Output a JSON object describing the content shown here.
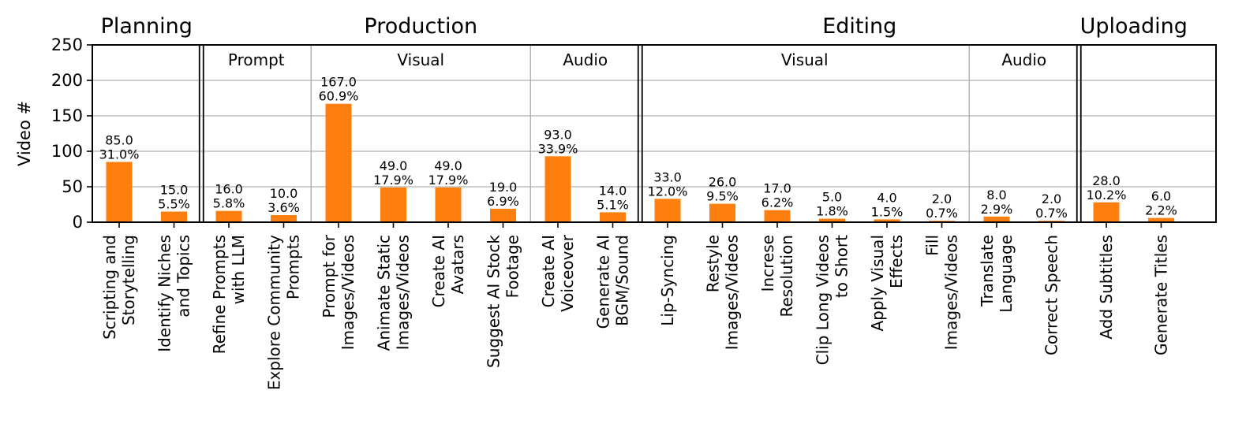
{
  "chart_data": {
    "type": "bar",
    "ylabel": "Video #",
    "ylim": [
      0,
      250
    ],
    "yticks": [
      0,
      50,
      100,
      150,
      200,
      250
    ],
    "grid": true,
    "bar_color": "#ff7f0e",
    "stages": [
      {
        "name": "Planning",
        "groups": [
          {
            "name": "",
            "bars": [
              {
                "label": [
                  "Scripting and",
                  "Storytelling"
                ],
                "value": 85,
                "value_text": "85.0",
                "percent_text": "31.0%"
              },
              {
                "label": [
                  "Identify Niches",
                  "and Topics"
                ],
                "value": 15,
                "value_text": "15.0",
                "percent_text": "5.5%"
              }
            ]
          }
        ]
      },
      {
        "name": "Production",
        "groups": [
          {
            "name": "Prompt",
            "bars": [
              {
                "label": [
                  "Refine Prompts",
                  "with LLM"
                ],
                "value": 16,
                "value_text": "16.0",
                "percent_text": "5.8%"
              },
              {
                "label": [
                  "Explore Community",
                  "Prompts"
                ],
                "value": 10,
                "value_text": "10.0",
                "percent_text": "3.6%"
              }
            ]
          },
          {
            "name": "Visual",
            "bars": [
              {
                "label": [
                  "Prompt for",
                  "Images/Videos"
                ],
                "value": 167,
                "value_text": "167.0",
                "percent_text": "60.9%"
              },
              {
                "label": [
                  "Animate Static",
                  "Images/Videos"
                ],
                "value": 49,
                "value_text": "49.0",
                "percent_text": "17.9%"
              },
              {
                "label": [
                  "Create AI",
                  "Avatars"
                ],
                "value": 49,
                "value_text": "49.0",
                "percent_text": "17.9%"
              },
              {
                "label": [
                  "Suggest AI Stock",
                  "Footage"
                ],
                "value": 19,
                "value_text": "19.0",
                "percent_text": "6.9%"
              }
            ]
          },
          {
            "name": "Audio",
            "bars": [
              {
                "label": [
                  "Create AI",
                  "Voiceover"
                ],
                "value": 93,
                "value_text": "93.0",
                "percent_text": "33.9%"
              },
              {
                "label": [
                  "Generate AI",
                  "BGM/Sound"
                ],
                "value": 14,
                "value_text": "14.0",
                "percent_text": "5.1%"
              }
            ]
          }
        ]
      },
      {
        "name": "Editing",
        "groups": [
          {
            "name": "Visual",
            "bars": [
              {
                "label": [
                  "Lip-Syncing"
                ],
                "value": 33,
                "value_text": "33.0",
                "percent_text": "12.0%"
              },
              {
                "label": [
                  "Restyle",
                  "Images/Videos"
                ],
                "value": 26,
                "value_text": "26.0",
                "percent_text": "9.5%"
              },
              {
                "label": [
                  "Increse",
                  "Resolution"
                ],
                "value": 17,
                "value_text": "17.0",
                "percent_text": "6.2%"
              },
              {
                "label": [
                  "Clip Long Videos",
                  "to Short"
                ],
                "value": 5,
                "value_text": "5.0",
                "percent_text": "1.8%"
              },
              {
                "label": [
                  "Apply Visual",
                  "Effects"
                ],
                "value": 4,
                "value_text": "4.0",
                "percent_text": "1.5%"
              },
              {
                "label": [
                  "Fill",
                  "Images/Videos"
                ],
                "value": 2,
                "value_text": "2.0",
                "percent_text": "0.7%"
              }
            ]
          },
          {
            "name": "Audio",
            "bars": [
              {
                "label": [
                  "Translate",
                  "Language"
                ],
                "value": 8,
                "value_text": "8.0",
                "percent_text": "2.9%"
              },
              {
                "label": [
                  "Correct Speech"
                ],
                "value": 2,
                "value_text": "2.0",
                "percent_text": "0.7%"
              }
            ]
          }
        ]
      },
      {
        "name": "Uploading",
        "groups": [
          {
            "name": "",
            "bars": [
              {
                "label": [
                  "Add Subtitles"
                ],
                "value": 28,
                "value_text": "28.0",
                "percent_text": "10.2%"
              },
              {
                "label": [
                  "Generate Titles"
                ],
                "value": 6,
                "value_text": "6.0",
                "percent_text": "2.2%"
              }
            ]
          }
        ]
      }
    ]
  }
}
